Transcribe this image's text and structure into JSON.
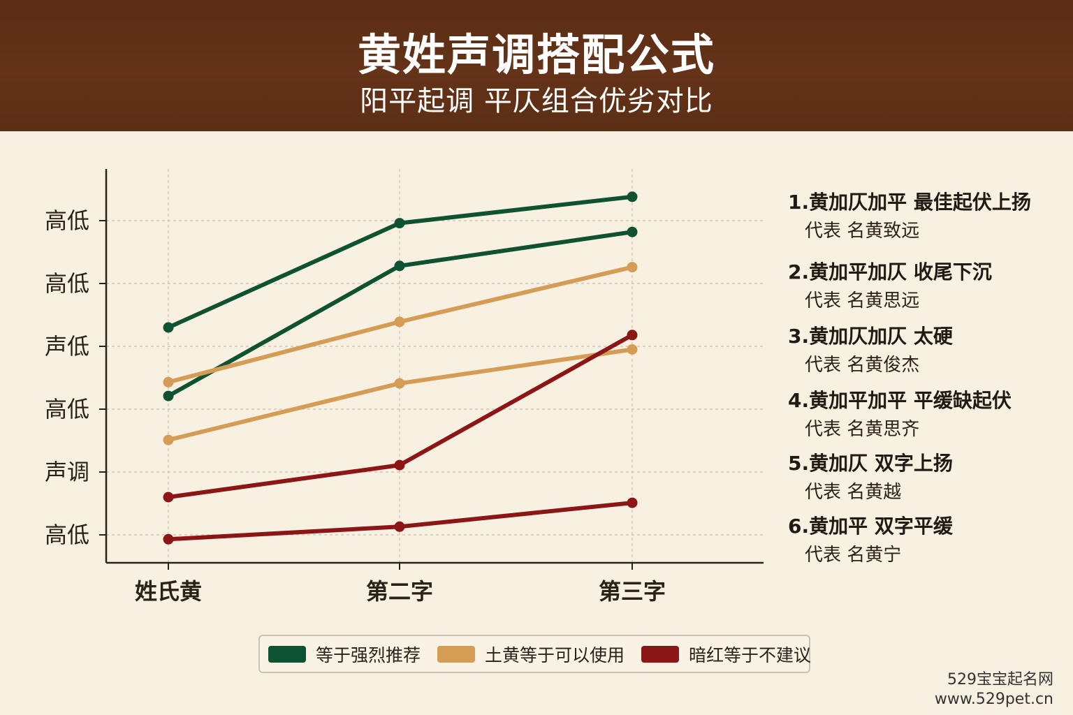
{
  "header": {
    "title": "黄姓声调搭配公式",
    "subtitle": "阳平起调 平仄组合优劣对比"
  },
  "colors": {
    "header_bg": "#5e2f16",
    "background": "#f8f1e1",
    "recommended": "#0f5232",
    "acceptable": "#d49c55",
    "not_recommended": "#8c1516"
  },
  "chart_data": {
    "type": "line",
    "title": "",
    "xlabel": "",
    "ylabel": "",
    "categories": [
      "姓氏黄",
      "第二字",
      "第三字"
    ],
    "y_tick_labels": [
      "高低",
      "声调",
      "高低",
      "声低",
      "高低",
      "高低"
    ],
    "ylim": [
      0.6,
      6.8
    ],
    "grid": true,
    "series": [
      {
        "group": "recommended",
        "values": [
          4.3,
          5.96,
          6.38
        ]
      },
      {
        "group": "recommended",
        "values": [
          3.21,
          5.28,
          5.82
        ]
      },
      {
        "group": "acceptable",
        "values": [
          3.43,
          4.39,
          5.26
        ]
      },
      {
        "group": "acceptable",
        "values": [
          2.51,
          3.41,
          3.95
        ]
      },
      {
        "group": "not_recommended",
        "values": [
          1.6,
          2.11,
          4.18
        ]
      },
      {
        "group": "not_recommended",
        "values": [
          0.93,
          1.13,
          1.51
        ]
      }
    ],
    "legend": {
      "placement": "bottom",
      "entries": [
        {
          "group": "recommended",
          "label": "等于强烈推荐"
        },
        {
          "group": "acceptable",
          "label": "土黄等于可以使用"
        },
        {
          "group": "not_recommended",
          "label": "暗红等于不建议"
        }
      ]
    }
  },
  "notes": [
    {
      "title": "1.黄加仄加平 最佳起伏上扬",
      "sub": "代表 名黄致远"
    },
    {
      "title": "2.黄加平加仄 收尾下沉",
      "sub": "代表 名黄思远"
    },
    {
      "title": "3.黄加仄加仄 太硬",
      "sub": "代表 名黄俊杰"
    },
    {
      "title": "4.黄加平加平 平缓缺起伏",
      "sub": "代表 名黄思齐"
    },
    {
      "title": "5.黄加仄 双字上扬",
      "sub": "代表 名黄越"
    },
    {
      "title": "6.黄加平 双字平缓",
      "sub": "代表 名黄宁"
    }
  ],
  "watermark": {
    "line1": "529宝宝起名网",
    "line2": "www.529pet.cn"
  }
}
